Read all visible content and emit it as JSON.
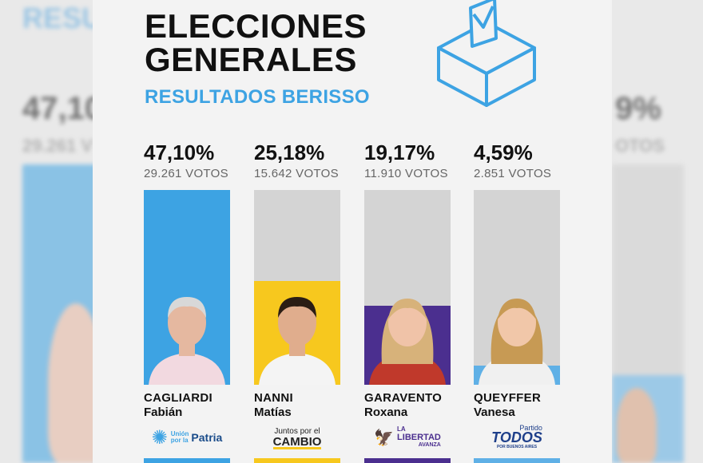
{
  "title_line1": "ELECCIONES",
  "title_line2": "GENERALES",
  "subtitle": "RESULTADOS BERISSO",
  "icons": {
    "ballot": "ballot-box-icon"
  },
  "colors": {
    "accent": "#3da3e3",
    "track": "#d4d4d4"
  },
  "chart_data": {
    "type": "bar",
    "categories": [
      "CAGLIARDI Fabián",
      "NANNI Matías",
      "GARAVENTO Roxana",
      "QUEYFFER Vanesa"
    ],
    "values": [
      47.1,
      25.18,
      19.17,
      4.59
    ],
    "ylim": [
      0,
      47.1
    ],
    "labels": [
      "47,10%",
      "25,18%",
      "19,17%",
      "4,59%"
    ],
    "votes": [
      "29.261 VOTOS",
      "15.642 VOTOS",
      "11.910 VOTOS",
      "2.851 VOTOS"
    ],
    "colors": [
      "#3da3e3",
      "#f7c81e",
      "#4b2f8f",
      "#5fb0e6"
    ],
    "grid": false,
    "legend": "none"
  },
  "candidates": [
    {
      "surname": "CAGLIARDI",
      "name": "Fabián",
      "party_logo": "Unión por la Patria",
      "pct": "47,10%",
      "votes": "29.261 VOTOS"
    },
    {
      "surname": "NANNI",
      "name": "Matías",
      "party_logo": "Juntos por el CAMBIO",
      "pct": "25,18%",
      "votes": "15.642 VOTOS"
    },
    {
      "surname": "GARAVENTO",
      "name": "Roxana",
      "party_logo": "LA LIBERTAD AVANZA",
      "pct": "19,17%",
      "votes": "11.910 VOTOS"
    },
    {
      "surname": "QUEYFFER",
      "name": "Vanesa",
      "party_logo": "Partido TODOS POR BUENOS AIRES",
      "pct": "4,59%",
      "votes": "2.851 VOTOS"
    }
  ],
  "logos": {
    "up_a": "Unión",
    "up_b": "por la",
    "up_c": "Patria",
    "jxc_a": "Juntos por el",
    "jxc_b": "CAMBIO",
    "lla_a": "LA",
    "lla_b": "LIBERTAD",
    "lla_c": "AVANZA",
    "pt_a": "Partido",
    "pt_b": "TODOS",
    "pt_c": "POR BUENOS AIRES"
  }
}
